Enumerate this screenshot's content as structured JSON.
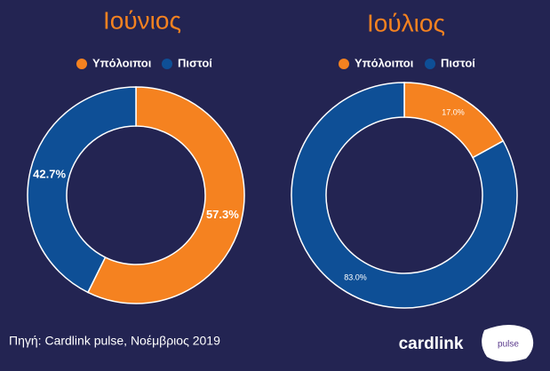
{
  "chart_data": [
    {
      "type": "pie",
      "title": "Ιούνιος",
      "categories": [
        "Υπόλοιποι",
        "Πιστοί"
      ],
      "values": [
        57.3,
        42.7
      ],
      "value_labels": [
        "57.3%",
        "42.7%"
      ],
      "colors": [
        "#f58220",
        "#0e4f96"
      ],
      "donut": true,
      "legend": "top"
    },
    {
      "type": "pie",
      "title": "Ιούλιος",
      "categories": [
        "Υπόλοιποι",
        "Πιστοί"
      ],
      "values": [
        17.0,
        83.0
      ],
      "value_labels": [
        "17.0%",
        "83.0%"
      ],
      "colors": [
        "#f58220",
        "#0e4f96"
      ],
      "donut": true,
      "legend": "top"
    }
  ],
  "source": "Πηγή: Cardlink pulse, Νοέμβριος 2019",
  "logo": {
    "brand": "cardlink",
    "product": "pulse"
  }
}
